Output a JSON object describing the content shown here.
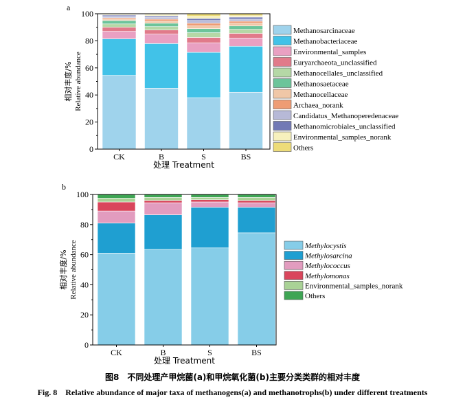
{
  "figure": {
    "caption_cn": "图8　不同处理产甲烷菌(a)和甲烷氧化菌(b)主要分类类群的相对丰度",
    "caption_en": "Fig. 8　Relative abundance of major taxa of methanogens(a) and methanotrophs(b) under different treatments"
  },
  "chart_data": [
    {
      "type": "bar",
      "stacked": true,
      "panel_label": "a",
      "xlabel": "处理 Treatment",
      "ylabel_cn": "相对丰度/%",
      "ylabel_en": "Relative abundance",
      "ylim": [
        0,
        100
      ],
      "yticks": [
        0,
        20,
        40,
        60,
        80,
        100
      ],
      "categories": [
        "CK",
        "B",
        "S",
        "BS"
      ],
      "legend_position": "right",
      "series": [
        {
          "name": "Methanosarcinaceae",
          "color": "#9fd3ec",
          "values": [
            54.5,
            45,
            38,
            42
          ]
        },
        {
          "name": "Methanobacteriaceae",
          "color": "#41c2e8",
          "values": [
            27,
            33,
            33.5,
            34
          ]
        },
        {
          "name": "Environmental_samples",
          "color": "#e9a0c2",
          "values": [
            5.5,
            7,
            7,
            6
          ]
        },
        {
          "name": "Euryarchaeota_unclassified",
          "color": "#e17a8a",
          "values": [
            3,
            3,
            4,
            3.5
          ]
        },
        {
          "name": "Methanocellales_unclassified",
          "color": "#b5d8a6",
          "values": [
            2.5,
            2.5,
            3.5,
            3
          ]
        },
        {
          "name": "Methanosaetaceae",
          "color": "#6cc49a",
          "values": [
            2.5,
            2.5,
            3,
            2.5
          ]
        },
        {
          "name": "Methanocellaceae",
          "color": "#f0c7a7",
          "values": [
            1,
            1.5,
            2,
            2
          ]
        },
        {
          "name": "Archaea_norank",
          "color": "#ee9c74",
          "values": [
            1,
            1.5,
            2,
            1.5
          ]
        },
        {
          "name": "Candidatus_Methanoperedenaceae",
          "color": "#b7b9d7",
          "values": [
            1,
            1.5,
            2,
            1.5
          ]
        },
        {
          "name": "Methanomicrobiales_unclassified",
          "color": "#7279b5",
          "values": [
            1,
            1,
            1.5,
            1.5
          ]
        },
        {
          "name": "Environmental_samples_norank",
          "color": "#f7f1bd",
          "values": [
            0.5,
            1,
            1.5,
            1
          ]
        },
        {
          "name": "Others",
          "color": "#eddc79",
          "values": [
            0.5,
            0.5,
            2,
            1.5
          ]
        }
      ]
    },
    {
      "type": "bar",
      "stacked": true,
      "panel_label": "b",
      "xlabel": "处理 Treatment",
      "ylabel_cn": "相对丰度/%",
      "ylabel_en": "Relative abundance",
      "ylim": [
        0,
        100
      ],
      "yticks": [
        0,
        20,
        40,
        60,
        80,
        100
      ],
      "categories": [
        "CK",
        "B",
        "S",
        "BS"
      ],
      "legend_position": "right",
      "series": [
        {
          "name": "Methylocystis",
          "italic": true,
          "color": "#86cde8",
          "values": [
            61,
            63.5,
            64.5,
            74.5
          ]
        },
        {
          "name": "Methylosarcina",
          "italic": true,
          "color": "#1f9fd1",
          "values": [
            20,
            23,
            27,
            17
          ]
        },
        {
          "name": "Methylococcus",
          "italic": true,
          "color": "#e29cbf",
          "values": [
            8,
            8,
            3.5,
            3
          ]
        },
        {
          "name": "Methylomonas",
          "italic": true,
          "color": "#d9465c",
          "values": [
            6,
            1.5,
            1.5,
            1.5
          ]
        },
        {
          "name": "Environmental_samples_norank",
          "italic": false,
          "color": "#a9d296",
          "values": [
            2.5,
            2,
            1.5,
            2
          ]
        },
        {
          "name": "Others",
          "italic": false,
          "color": "#3ea554",
          "values": [
            2.5,
            2,
            2,
            2
          ]
        }
      ]
    }
  ]
}
